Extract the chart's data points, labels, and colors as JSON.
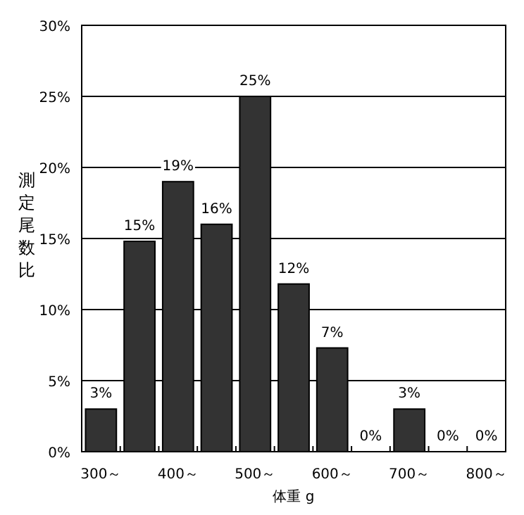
{
  "chart_data": {
    "type": "bar",
    "xlabel": "体重 g",
    "ylabel": "測定尾数比",
    "categories": [
      "300～",
      null,
      "400～",
      null,
      "500～",
      null,
      "600～",
      null,
      "700～",
      null,
      "800～"
    ],
    "values": [
      3,
      14.8,
      19,
      16,
      25,
      11.8,
      7.3,
      0,
      3,
      0,
      0
    ],
    "value_labels": [
      "3%",
      "15%",
      "19%",
      "16%",
      "25%",
      "12%",
      "7%",
      "0%",
      "3%",
      "0%",
      "0%"
    ],
    "color": "#333333",
    "grid": "y",
    "ylim": [
      0,
      30
    ],
    "yticks": [
      {
        "value": 0,
        "label": "0%"
      },
      {
        "value": 5,
        "label": "5%"
      },
      {
        "value": 10,
        "label": "10%"
      },
      {
        "value": 15,
        "label": "15%"
      },
      {
        "value": 20,
        "label": "20%"
      },
      {
        "value": 25,
        "label": "25%"
      },
      {
        "value": 30,
        "label": "30%"
      }
    ]
  }
}
